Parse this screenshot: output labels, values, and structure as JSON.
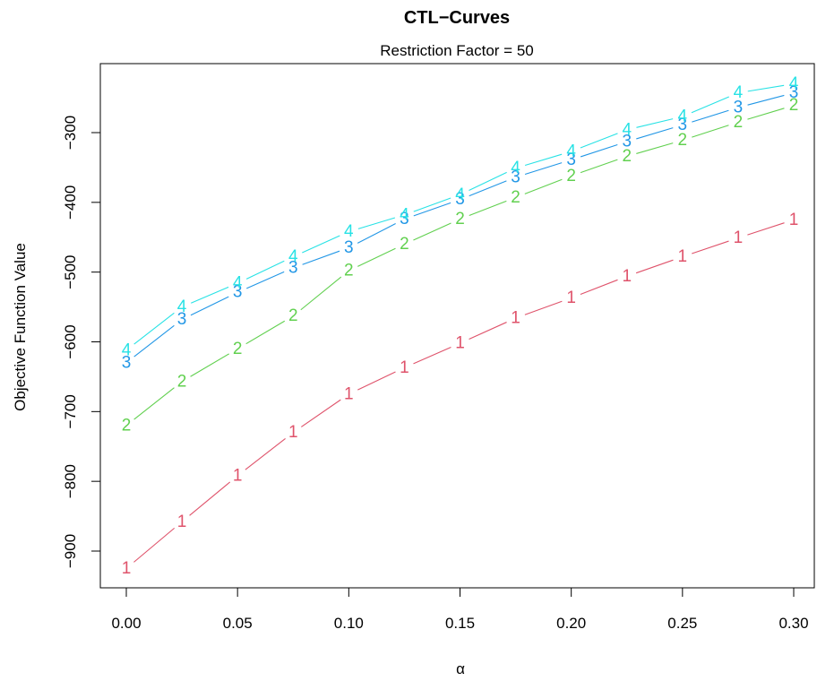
{
  "chart_data": {
    "type": "line",
    "title": "CTL−Curves",
    "subtitle": "Restriction Factor = 50",
    "xlabel": "α",
    "ylabel": "Objective Function Value",
    "x": [
      0.0,
      0.025,
      0.05,
      0.075,
      0.1,
      0.125,
      0.15,
      0.175,
      0.2,
      0.225,
      0.25,
      0.275,
      0.3
    ],
    "xlim": [
      0.0,
      0.3
    ],
    "ylim": [
      -950,
      -220
    ],
    "x_ticks": [
      0.0,
      0.05,
      0.1,
      0.15,
      0.2,
      0.25,
      0.3
    ],
    "x_tick_labels": [
      "0.00",
      "0.05",
      "0.10",
      "0.15",
      "0.20",
      "0.25",
      "0.30"
    ],
    "y_ticks": [
      -900,
      -800,
      -700,
      -600,
      -500,
      -400,
      -300
    ],
    "y_tick_labels": [
      "−900",
      "−800",
      "−700",
      "−600",
      "−500",
      "−400",
      "−300"
    ],
    "grid": false,
    "series": [
      {
        "name": "1",
        "color": "#DF536B",
        "values": [
          -925,
          -858,
          -792,
          -730,
          -675,
          -637,
          -602,
          -566,
          -537,
          -506,
          -478,
          -451,
          -425
        ]
      },
      {
        "name": "2",
        "color": "#61D04F",
        "values": [
          -720,
          -657,
          -610,
          -563,
          -498,
          -460,
          -424,
          -393,
          -362,
          -334,
          -311,
          -285,
          -261
        ]
      },
      {
        "name": "3",
        "color": "#2297E6",
        "values": [
          -630,
          -568,
          -529,
          -494,
          -465,
          -424,
          -396,
          -364,
          -339,
          -313,
          -289,
          -264,
          -243
        ]
      },
      {
        "name": "4",
        "color": "#28E2E5",
        "values": [
          -612,
          -550,
          -516,
          -478,
          -442,
          -418,
          -389,
          -351,
          -327,
          -296,
          -277,
          -243,
          -230
        ]
      }
    ]
  }
}
